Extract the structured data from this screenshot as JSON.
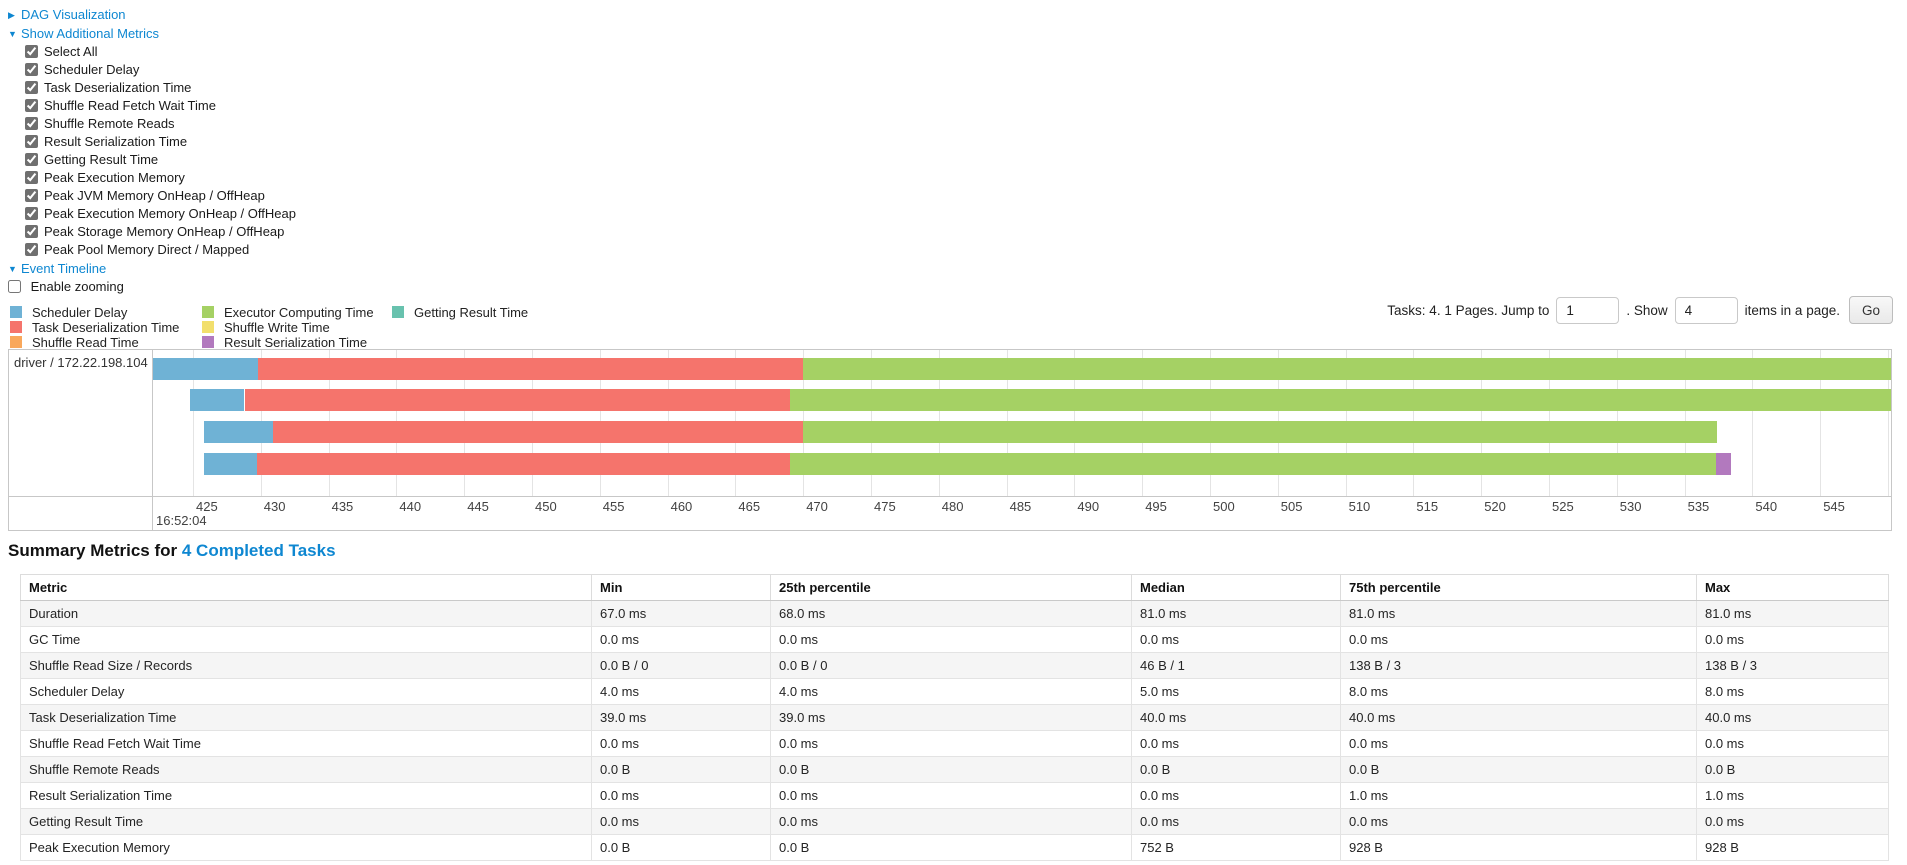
{
  "colors": {
    "link_blue": "#0e87d1",
    "scheduler_delay": "#6FB2D5",
    "task_deserialization": "#F5746C",
    "shuffle_read": "#F9A85C",
    "executor_computing": "#A5D164",
    "shuffle_write": "#F2DF6D",
    "result_serialization": "#B279BE",
    "getting_result": "#68C2AE"
  },
  "metrics_panel": {
    "dag_visualization": {
      "label": "DAG Visualization",
      "state": "collapsed",
      "arrow": "▶"
    },
    "show_additional_metrics": {
      "label": "Show Additional Metrics",
      "state": "expanded",
      "arrow": "▼"
    },
    "checkboxes": [
      {
        "label": "Select All",
        "checked": true
      },
      {
        "label": "Scheduler Delay",
        "checked": true
      },
      {
        "label": "Task Deserialization Time",
        "checked": true
      },
      {
        "label": "Shuffle Read Fetch Wait Time",
        "checked": true
      },
      {
        "label": "Shuffle Remote Reads",
        "checked": true
      },
      {
        "label": "Result Serialization Time",
        "checked": true
      },
      {
        "label": "Getting Result Time",
        "checked": true
      },
      {
        "label": "Peak Execution Memory",
        "checked": true
      },
      {
        "label": "Peak JVM Memory OnHeap / OffHeap",
        "checked": true
      },
      {
        "label": "Peak Execution Memory OnHeap / OffHeap",
        "checked": true
      },
      {
        "label": "Peak Storage Memory OnHeap / OffHeap",
        "checked": true
      },
      {
        "label": "Peak Pool Memory Direct / Mapped",
        "checked": true
      }
    ],
    "event_timeline": {
      "label": "Event Timeline",
      "state": "expanded",
      "arrow": "▼"
    },
    "enable_zooming": {
      "label": "Enable zooming",
      "checked": false
    }
  },
  "pagination": {
    "tasks_text": "Tasks: 4. 1 Pages. Jump to",
    "jump_value": "1",
    "show_text": ". Show",
    "show_value": "4",
    "items_text": "items in a page.",
    "go_label": "Go"
  },
  "chart_data": {
    "type": "timeline",
    "title": "Event Timeline",
    "group_label": "driver / 172.22.198.104",
    "legend": [
      {
        "label": "Scheduler Delay",
        "color_key": "scheduler_delay",
        "col": 0
      },
      {
        "label": "Task Deserialization Time",
        "color_key": "task_deserialization",
        "col": 0
      },
      {
        "label": "Shuffle Read Time",
        "color_key": "shuffle_read",
        "col": 0
      },
      {
        "label": "Executor Computing Time",
        "color_key": "executor_computing",
        "col": 1
      },
      {
        "label": "Shuffle Write Time",
        "color_key": "shuffle_write",
        "col": 1
      },
      {
        "label": "Result Serialization Time",
        "color_key": "result_serialization",
        "col": 1
      },
      {
        "label": "Getting Result Time",
        "color_key": "getting_result",
        "col": 2
      }
    ],
    "axis": {
      "description": "milliseconds within second 16:52:04",
      "tick_start": 425,
      "tick_end": 550,
      "tick_step": 5,
      "domain_min": 421.9,
      "domain_max": 550.4,
      "first_tick_time_label": "16:52:04"
    },
    "tasks": [
      {
        "segments": [
          {
            "type": "scheduler_delay",
            "from": 421.9,
            "to": 429.8
          },
          {
            "type": "task_deserialization",
            "from": 429.8,
            "to": 470.0
          },
          {
            "type": "executor_computing",
            "from": 470.0,
            "to": 551.5
          }
        ]
      },
      {
        "segments": [
          {
            "type": "scheduler_delay",
            "from": 424.8,
            "to": 428.8
          },
          {
            "type": "task_deserialization",
            "from": 428.8,
            "to": 469.0
          },
          {
            "type": "executor_computing",
            "from": 469.0,
            "to": 550.3
          }
        ]
      },
      {
        "segments": [
          {
            "type": "scheduler_delay",
            "from": 425.8,
            "to": 430.9
          },
          {
            "type": "task_deserialization",
            "from": 430.9,
            "to": 470.0
          },
          {
            "type": "executor_computing",
            "from": 470.0,
            "to": 537.4
          }
        ]
      },
      {
        "segments": [
          {
            "type": "scheduler_delay",
            "from": 425.8,
            "to": 429.7
          },
          {
            "type": "task_deserialization",
            "from": 429.7,
            "to": 469.0
          },
          {
            "type": "executor_computing",
            "from": 469.0,
            "to": 537.3
          },
          {
            "type": "result_serialization",
            "from": 537.3,
            "to": 538.4
          }
        ]
      }
    ]
  },
  "summary_metrics": {
    "title_prefix": "Summary Metrics for",
    "title_link": "4 Completed Tasks",
    "headers": [
      "Metric",
      "Min",
      "25th percentile",
      "Median",
      "75th percentile",
      "Max"
    ],
    "rows": [
      [
        "Duration",
        "67.0 ms",
        "68.0 ms",
        "81.0 ms",
        "81.0 ms",
        "81.0 ms"
      ],
      [
        "GC Time",
        "0.0 ms",
        "0.0 ms",
        "0.0 ms",
        "0.0 ms",
        "0.0 ms"
      ],
      [
        "Shuffle Read Size / Records",
        "0.0 B / 0",
        "0.0 B / 0",
        "46 B / 1",
        "138 B / 3",
        "138 B / 3"
      ],
      [
        "Scheduler Delay",
        "4.0 ms",
        "4.0 ms",
        "5.0 ms",
        "8.0 ms",
        "8.0 ms"
      ],
      [
        "Task Deserialization Time",
        "39.0 ms",
        "39.0 ms",
        "40.0 ms",
        "40.0 ms",
        "40.0 ms"
      ],
      [
        "Shuffle Read Fetch Wait Time",
        "0.0 ms",
        "0.0 ms",
        "0.0 ms",
        "0.0 ms",
        "0.0 ms"
      ],
      [
        "Shuffle Remote Reads",
        "0.0 B",
        "0.0 B",
        "0.0 B",
        "0.0 B",
        "0.0 B"
      ],
      [
        "Result Serialization Time",
        "0.0 ms",
        "0.0 ms",
        "0.0 ms",
        "1.0 ms",
        "1.0 ms"
      ],
      [
        "Getting Result Time",
        "0.0 ms",
        "0.0 ms",
        "0.0 ms",
        "0.0 ms",
        "0.0 ms"
      ],
      [
        "Peak Execution Memory",
        "0.0 B",
        "0.0 B",
        "752 B",
        "928 B",
        "928 B"
      ]
    ]
  }
}
